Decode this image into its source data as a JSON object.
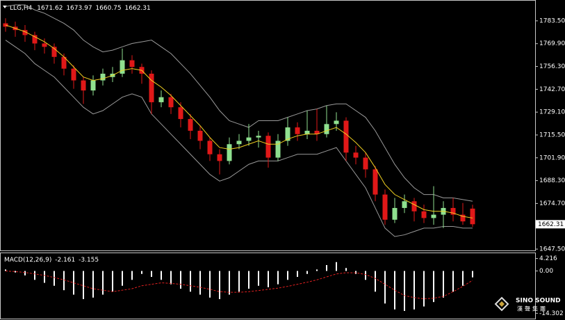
{
  "chart_data": {
    "type": "candlestick",
    "symbol": "LLG,H4",
    "candles": [
      [
        1782,
        1785,
        1777,
        1780
      ],
      [
        1780,
        1783,
        1774,
        1778
      ],
      [
        1778,
        1781,
        1771,
        1775
      ],
      [
        1775,
        1777,
        1766,
        1770
      ],
      [
        1770,
        1773,
        1764,
        1768
      ],
      [
        1768,
        1770,
        1758,
        1762
      ],
      [
        1762,
        1764,
        1751,
        1755
      ],
      [
        1755,
        1757,
        1743,
        1748
      ],
      [
        1748,
        1750,
        1734,
        1742
      ],
      [
        1742,
        1751,
        1739,
        1748
      ],
      [
        1748,
        1755,
        1745,
        1752
      ],
      [
        1750,
        1756,
        1747,
        1752
      ],
      [
        1752,
        1767,
        1750,
        1760
      ],
      [
        1760,
        1763,
        1752,
        1756
      ],
      [
        1756,
        1758,
        1746,
        1752
      ],
      [
        1752,
        1754,
        1728,
        1735
      ],
      [
        1735,
        1742,
        1732,
        1738
      ],
      [
        1738,
        1740,
        1728,
        1732
      ],
      [
        1732,
        1735,
        1720,
        1725
      ],
      [
        1725,
        1728,
        1713,
        1718
      ],
      [
        1718,
        1721,
        1707,
        1712
      ],
      [
        1712,
        1714,
        1700,
        1704
      ],
      [
        1704,
        1707,
        1692,
        1700
      ],
      [
        1700,
        1714,
        1698,
        1710
      ],
      [
        1710,
        1716,
        1707,
        1712
      ],
      [
        1712,
        1722,
        1709,
        1714
      ],
      [
        1714,
        1718,
        1708,
        1715
      ],
      [
        1715,
        1717,
        1696,
        1702
      ],
      [
        1702,
        1716,
        1700,
        1712
      ],
      [
        1712,
        1726,
        1709,
        1720
      ],
      [
        1720,
        1723,
        1712,
        1716
      ],
      [
        1716,
        1730,
        1713,
        1718
      ],
      [
        1718,
        1731,
        1712,
        1716
      ],
      [
        1716,
        1733,
        1714,
        1722
      ],
      [
        1722,
        1729,
        1718,
        1724
      ],
      [
        1724,
        1726,
        1700,
        1705
      ],
      [
        1705,
        1709,
        1698,
        1702
      ],
      [
        1702,
        1705,
        1690,
        1695
      ],
      [
        1695,
        1697,
        1676,
        1680
      ],
      [
        1680,
        1683,
        1662,
        1665
      ],
      [
        1665,
        1678,
        1663,
        1672
      ],
      [
        1672,
        1680,
        1669,
        1676
      ],
      [
        1676,
        1678,
        1664,
        1670
      ],
      [
        1670,
        1674,
        1663,
        1666
      ],
      [
        1666,
        1685,
        1662,
        1668
      ],
      [
        1668,
        1676,
        1660,
        1672
      ],
      [
        1672,
        1678,
        1664,
        1668
      ],
      [
        1668,
        1675,
        1662,
        1664
      ],
      [
        1671.62,
        1673.97,
        1660.75,
        1662.31
      ]
    ],
    "up_color": "#8fe08f",
    "down_color": "#e01818",
    "ma": {
      "color": "#f0d020",
      "values": [
        1781,
        1779,
        1777,
        1774,
        1771,
        1767,
        1762,
        1756,
        1750,
        1748,
        1749,
        1751,
        1754,
        1755,
        1754,
        1748,
        1744,
        1739,
        1733,
        1727,
        1721,
        1714,
        1708,
        1707,
        1708,
        1710,
        1712,
        1710,
        1710,
        1713,
        1715,
        1716,
        1716,
        1718,
        1720,
        1716,
        1711,
        1705,
        1696,
        1686,
        1680,
        1677,
        1674,
        1671,
        1670,
        1670,
        1669,
        1667,
        1666
      ]
    },
    "bands": {
      "color": "#9a9a9a",
      "upper": [
        1792,
        1793,
        1793,
        1790,
        1788,
        1785,
        1782,
        1778,
        1772,
        1768,
        1765,
        1766,
        1768,
        1770,
        1771,
        1772,
        1768,
        1764,
        1758,
        1752,
        1745,
        1738,
        1730,
        1724,
        1722,
        1720,
        1724,
        1724,
        1724,
        1726,
        1728,
        1730,
        1731,
        1733,
        1734,
        1734,
        1730,
        1726,
        1718,
        1708,
        1698,
        1690,
        1684,
        1680,
        1680,
        1678,
        1678,
        1677,
        1676
      ],
      "lower": [
        1772,
        1768,
        1764,
        1758,
        1754,
        1750,
        1744,
        1738,
        1732,
        1728,
        1730,
        1734,
        1738,
        1740,
        1738,
        1728,
        1722,
        1716,
        1710,
        1704,
        1698,
        1692,
        1688,
        1690,
        1694,
        1698,
        1700,
        1700,
        1700,
        1702,
        1704,
        1704,
        1704,
        1706,
        1708,
        1700,
        1692,
        1684,
        1672,
        1660,
        1655,
        1656,
        1658,
        1660,
        1660,
        1661,
        1661,
        1660,
        1660
      ]
    },
    "ylim": [
      1646.7,
      1795.9
    ],
    "yticks": [
      {
        "value": 1783.5,
        "label": "1783.50"
      },
      {
        "value": 1769.9,
        "label": "1769.90"
      },
      {
        "value": 1756.3,
        "label": "1756.30"
      },
      {
        "value": 1742.7,
        "label": "1742.70"
      },
      {
        "value": 1729.1,
        "label": "1729.10"
      },
      {
        "value": 1715.5,
        "label": "1715.50"
      },
      {
        "value": 1701.9,
        "label": "1701.90"
      },
      {
        "value": 1688.3,
        "label": "1688.30"
      },
      {
        "value": 1674.7,
        "label": "1674.70"
      },
      {
        "value": 1647.5,
        "label": "1647.50"
      }
    ],
    "last_price": 1662.31,
    "macd": {
      "label": "MACD(12,26,9)",
      "hist_color": "#ffffff",
      "signal_color": "#e02020",
      "values": [
        0.5,
        -0.5,
        -1.5,
        -3,
        -4,
        -5,
        -6.5,
        -8,
        -9.5,
        -9,
        -8,
        -7,
        -5,
        -3,
        -1,
        -2,
        -3,
        -4.5,
        -6,
        -7,
        -8,
        -9,
        -9.5,
        -8,
        -7,
        -6,
        -5,
        -5.5,
        -4.5,
        -3,
        -2,
        -1,
        0.5,
        2,
        3,
        1,
        -1,
        -3,
        -7,
        -11,
        -13,
        -13.5,
        -13,
        -12,
        -10.5,
        -9,
        -7,
        -5,
        -2.161
      ],
      "signal": [
        0,
        -0.2,
        -0.5,
        -1,
        -1.5,
        -2.2,
        -3,
        -4,
        -5,
        -6,
        -6.5,
        -7,
        -6.5,
        -6,
        -5,
        -4.5,
        -4,
        -4.2,
        -4.5,
        -5,
        -5.5,
        -6.2,
        -7,
        -7.2,
        -7.2,
        -7,
        -6.6,
        -6.2,
        -5.8,
        -5.2,
        -4.5,
        -3.8,
        -3,
        -2,
        -1,
        -0.6,
        -0.6,
        -1.2,
        -2.5,
        -4.5,
        -6.5,
        -8.3,
        -9,
        -9.4,
        -9.2,
        -8.6,
        -7,
        -5.2,
        -3.155
      ],
      "ylim": [
        -16.1,
        6.0
      ],
      "yticks": [
        4.216,
        {
          "value": 0,
          "label": "0.00"
        },
        -14.302
      ]
    }
  },
  "logo": {
    "name": "SINO SOUND",
    "chinese": "漢聲集團"
  }
}
